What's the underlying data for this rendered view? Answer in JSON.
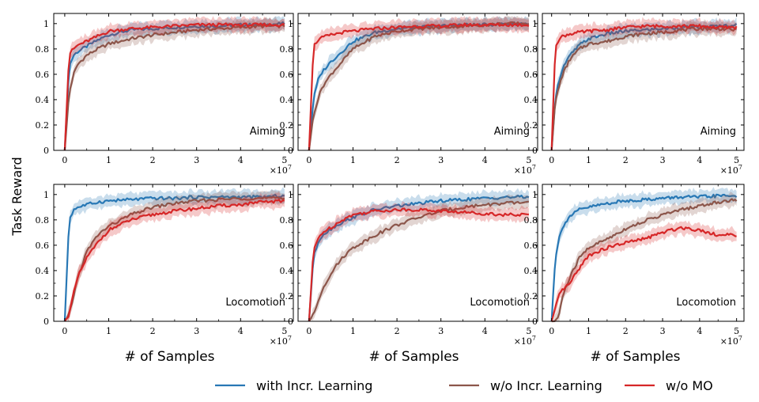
{
  "figure": {
    "ylabel": "Task Reward",
    "xlabel": "# of Samples",
    "x_multiplier_base": "×10",
    "x_multiplier_exp": "7"
  },
  "legend": {
    "placement": "bottom-right",
    "items": [
      {
        "label": "with Incr. Learning",
        "color": "#2878b5"
      },
      {
        "label": "w/o Incr. Learning",
        "color": "#8c564b"
      },
      {
        "label": "w/o MO",
        "color": "#d62728"
      }
    ]
  },
  "chart_data": [
    {
      "type": "line",
      "annotation": "Aiming",
      "xlim": [
        -0.25,
        5.2
      ],
      "ylim": [
        0,
        1.08
      ],
      "xticks": [
        0,
        1,
        2,
        3,
        4,
        5
      ],
      "yticks": [
        0.0,
        0.2,
        0.4,
        0.6,
        0.8,
        1.0
      ],
      "grid": false,
      "x": [
        0,
        0.1,
        0.2,
        0.3,
        0.5,
        0.75,
        1,
        1.5,
        2,
        2.5,
        3,
        3.5,
        4,
        4.5,
        5
      ],
      "series": [
        {
          "name": "with Incr. Learning",
          "color": "#2878b5",
          "values": [
            0,
            0.66,
            0.75,
            0.78,
            0.82,
            0.87,
            0.91,
            0.95,
            0.96,
            0.97,
            0.98,
            0.98,
            0.99,
            0.99,
            1.0
          ]
        },
        {
          "name": "w/o Incr. Learning",
          "color": "#8c564b",
          "values": [
            0,
            0.45,
            0.6,
            0.68,
            0.75,
            0.8,
            0.84,
            0.88,
            0.91,
            0.93,
            0.95,
            0.96,
            0.97,
            0.98,
            0.98
          ]
        },
        {
          "name": "w/o MO",
          "color": "#d62728",
          "values": [
            0,
            0.76,
            0.8,
            0.83,
            0.86,
            0.9,
            0.94,
            0.96,
            0.97,
            0.98,
            0.99,
            0.99,
            0.99,
            0.99,
            0.99
          ]
        }
      ]
    },
    {
      "type": "line",
      "annotation": "Aiming",
      "xlim": [
        -0.25,
        5.2
      ],
      "ylim": [
        0,
        1.08
      ],
      "xticks": [
        0,
        1,
        2,
        3,
        4,
        5
      ],
      "yticks": [
        0.0,
        0.2,
        0.4,
        0.6,
        0.8,
        1.0
      ],
      "grid": false,
      "x": [
        0,
        0.1,
        0.2,
        0.3,
        0.5,
        0.75,
        1,
        1.5,
        2,
        2.5,
        3,
        3.5,
        4,
        4.5,
        5
      ],
      "series": [
        {
          "name": "with Incr. Learning",
          "color": "#2878b5",
          "values": [
            0,
            0.4,
            0.55,
            0.62,
            0.7,
            0.78,
            0.86,
            0.93,
            0.96,
            0.97,
            0.98,
            0.99,
            0.99,
            1.0,
            1.0
          ]
        },
        {
          "name": "w/o Incr. Learning",
          "color": "#8c564b",
          "values": [
            0,
            0.28,
            0.4,
            0.5,
            0.6,
            0.7,
            0.8,
            0.9,
            0.94,
            0.96,
            0.97,
            0.98,
            0.99,
            1.0,
            1.0
          ]
        },
        {
          "name": "w/o MO",
          "color": "#d62728",
          "values": [
            0,
            0.82,
            0.87,
            0.89,
            0.91,
            0.93,
            0.94,
            0.96,
            0.97,
            0.98,
            0.98,
            0.99,
            0.99,
            0.99,
            0.99
          ]
        }
      ]
    },
    {
      "type": "line",
      "annotation": "Aiming",
      "xlim": [
        -0.25,
        5.2
      ],
      "ylim": [
        0,
        1.08
      ],
      "xticks": [
        0,
        1,
        2,
        3,
        4,
        5
      ],
      "yticks": [
        0.0,
        0.2,
        0.4,
        0.6,
        0.8,
        1.0
      ],
      "grid": false,
      "x": [
        0,
        0.1,
        0.2,
        0.3,
        0.5,
        0.75,
        1,
        1.5,
        2,
        2.5,
        3,
        3.5,
        4,
        4.5,
        5
      ],
      "series": [
        {
          "name": "with Incr. Learning",
          "color": "#2878b5",
          "values": [
            0,
            0.42,
            0.55,
            0.65,
            0.75,
            0.83,
            0.88,
            0.92,
            0.94,
            0.95,
            0.96,
            0.97,
            0.97,
            0.98,
            0.99
          ]
        },
        {
          "name": "w/o Incr. Learning",
          "color": "#8c564b",
          "values": [
            0,
            0.38,
            0.5,
            0.6,
            0.72,
            0.8,
            0.84,
            0.86,
            0.9,
            0.92,
            0.93,
            0.95,
            0.96,
            0.96,
            0.95
          ]
        },
        {
          "name": "w/o MO",
          "color": "#d62728",
          "values": [
            0,
            0.82,
            0.88,
            0.9,
            0.92,
            0.93,
            0.94,
            0.95,
            0.97,
            0.98,
            0.98,
            0.98,
            0.98,
            0.97,
            0.97
          ]
        }
      ]
    },
    {
      "type": "line",
      "annotation": "Locomotion",
      "xlim": [
        -0.25,
        5.2
      ],
      "ylim": [
        0,
        1.08
      ],
      "xticks": [
        0,
        1,
        2,
        3,
        4,
        5
      ],
      "yticks": [
        0.0,
        0.2,
        0.4,
        0.6,
        0.8,
        1.0
      ],
      "grid": false,
      "x": [
        0,
        0.1,
        0.2,
        0.3,
        0.5,
        0.75,
        1,
        1.5,
        2,
        2.5,
        3,
        3.5,
        4,
        4.5,
        5
      ],
      "series": [
        {
          "name": "with Incr. Learning",
          "color": "#2878b5",
          "values": [
            0,
            0.8,
            0.88,
            0.9,
            0.92,
            0.94,
            0.95,
            0.96,
            0.97,
            0.97,
            0.98,
            0.98,
            0.98,
            0.98,
            0.99
          ]
        },
        {
          "name": "w/o Incr. Learning",
          "color": "#8c564b",
          "values": [
            0,
            0.05,
            0.2,
            0.35,
            0.55,
            0.68,
            0.75,
            0.84,
            0.9,
            0.93,
            0.95,
            0.96,
            0.97,
            0.97,
            0.97
          ]
        },
        {
          "name": "w/o MO",
          "color": "#d62728",
          "values": [
            0,
            0.05,
            0.22,
            0.35,
            0.5,
            0.62,
            0.72,
            0.8,
            0.84,
            0.87,
            0.89,
            0.91,
            0.92,
            0.94,
            0.95
          ]
        }
      ]
    },
    {
      "type": "line",
      "annotation": "Locomotion",
      "xlim": [
        -0.25,
        5.2
      ],
      "ylim": [
        0,
        1.08
      ],
      "xticks": [
        0,
        1,
        2,
        3,
        4,
        5
      ],
      "yticks": [
        0.0,
        0.2,
        0.4,
        0.6,
        0.8,
        1.0
      ],
      "grid": false,
      "x": [
        0,
        0.1,
        0.2,
        0.3,
        0.5,
        0.75,
        1,
        1.5,
        2,
        2.5,
        3,
        3.5,
        4,
        4.5,
        5
      ],
      "series": [
        {
          "name": "with Incr. Learning",
          "color": "#2878b5",
          "values": [
            0,
            0.5,
            0.62,
            0.68,
            0.73,
            0.78,
            0.82,
            0.88,
            0.91,
            0.93,
            0.95,
            0.96,
            0.97,
            0.98,
            0.98
          ]
        },
        {
          "name": "w/o Incr. Learning",
          "color": "#8c564b",
          "values": [
            0,
            0.05,
            0.15,
            0.25,
            0.38,
            0.5,
            0.58,
            0.68,
            0.76,
            0.82,
            0.87,
            0.9,
            0.92,
            0.93,
            0.94
          ]
        },
        {
          "name": "w/o MO",
          "color": "#d62728",
          "values": [
            0,
            0.55,
            0.65,
            0.7,
            0.74,
            0.8,
            0.84,
            0.87,
            0.88,
            0.88,
            0.87,
            0.86,
            0.85,
            0.84,
            0.84
          ]
        }
      ]
    },
    {
      "type": "line",
      "annotation": "Locomotion",
      "xlim": [
        -0.25,
        5.2
      ],
      "ylim": [
        0,
        1.08
      ],
      "xticks": [
        0,
        1,
        2,
        3,
        4,
        5
      ],
      "yticks": [
        0.0,
        0.2,
        0.4,
        0.6,
        0.8,
        1.0
      ],
      "grid": false,
      "x": [
        0,
        0.1,
        0.2,
        0.3,
        0.5,
        0.75,
        1,
        1.5,
        2,
        2.5,
        3,
        3.5,
        4,
        4.5,
        5
      ],
      "series": [
        {
          "name": "with Incr. Learning",
          "color": "#2878b5",
          "values": [
            0,
            0.5,
            0.65,
            0.75,
            0.83,
            0.88,
            0.9,
            0.93,
            0.95,
            0.96,
            0.97,
            0.98,
            0.98,
            0.99,
            0.99
          ]
        },
        {
          "name": "w/o Incr. Learning",
          "color": "#8c564b",
          "values": [
            0,
            0.0,
            0.05,
            0.2,
            0.35,
            0.5,
            0.58,
            0.65,
            0.73,
            0.79,
            0.84,
            0.88,
            0.91,
            0.94,
            0.96
          ]
        },
        {
          "name": "w/o MO",
          "color": "#d62728",
          "values": [
            0,
            0.1,
            0.2,
            0.25,
            0.3,
            0.42,
            0.52,
            0.58,
            0.62,
            0.65,
            0.7,
            0.74,
            0.72,
            0.68,
            0.68
          ]
        }
      ]
    }
  ]
}
